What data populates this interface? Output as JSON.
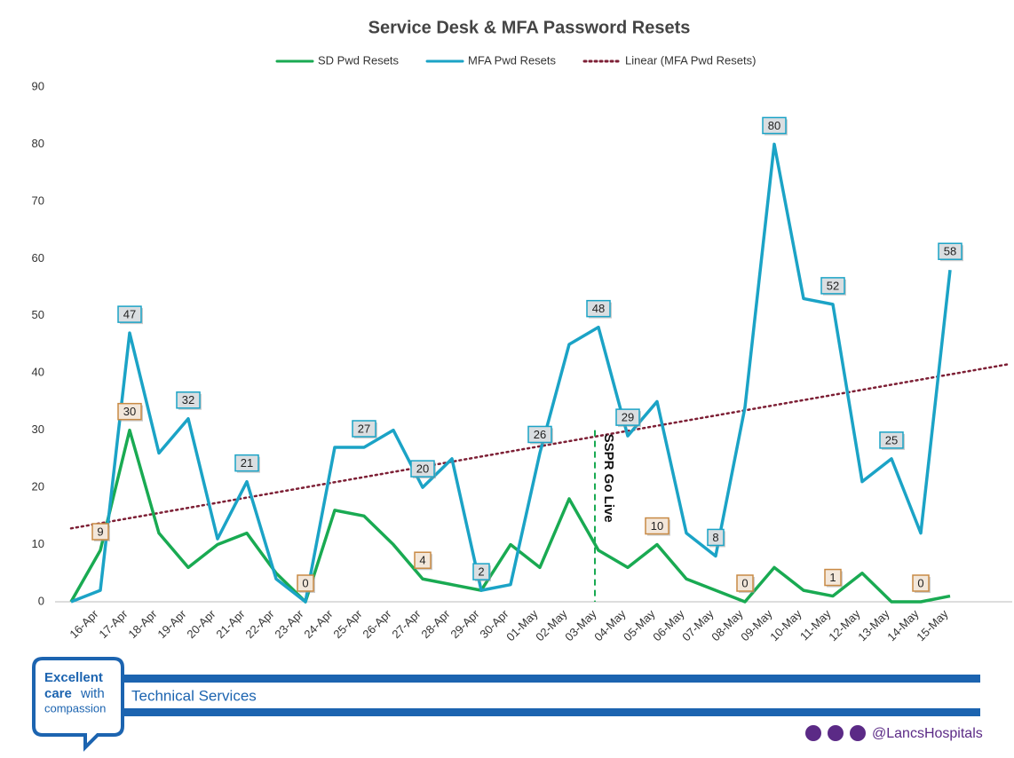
{
  "chart_data": {
    "type": "line",
    "title": "Service Desk  & MFA Password Resets",
    "categories": [
      null,
      "16-Apr",
      "17-Apr",
      "18-Apr",
      "19-Apr",
      "20-Apr",
      "21-Apr",
      "22-Apr",
      "23-Apr",
      "24-Apr",
      "25-Apr",
      "26-Apr",
      "27-Apr",
      "28-Apr",
      "29-Apr",
      "30-Apr",
      "01-May",
      "02-May",
      "03-May",
      "04-May",
      "05-May",
      "06-May",
      "07-May",
      "08-May",
      "09-May",
      "10-May",
      "11-May",
      "12-May",
      "13-May",
      "14-May",
      "15-May"
    ],
    "series": [
      {
        "name": "SD Pwd Resets",
        "color": "#19aa52",
        "label_fill": "#f3e7da",
        "label_stroke": "#c88a45",
        "values": [
          0,
          9,
          30,
          12,
          6,
          10,
          12,
          5,
          0,
          16,
          15,
          10,
          4,
          3,
          2,
          10,
          6,
          18,
          9,
          6,
          10,
          4,
          2,
          0,
          6,
          2,
          1,
          5,
          0,
          0,
          1
        ],
        "value_labels": [
          null,
          "9",
          "30",
          null,
          null,
          null,
          null,
          null,
          "0",
          null,
          null,
          null,
          "4",
          null,
          null,
          null,
          null,
          null,
          null,
          null,
          "10",
          null,
          null,
          "0",
          null,
          null,
          "1",
          null,
          null,
          "0",
          null
        ]
      },
      {
        "name": "MFA Pwd Resets",
        "color": "#1ba3c6",
        "label_fill": "#dadee1",
        "label_stroke": "#1ba3c6",
        "values": [
          0,
          2,
          47,
          26,
          32,
          11,
          21,
          4,
          0,
          27,
          27,
          30,
          20,
          25,
          2,
          3,
          26,
          45,
          48,
          29,
          35,
          12,
          8,
          34,
          80,
          53,
          52,
          21,
          25,
          12,
          58
        ],
        "value_labels": [
          null,
          null,
          "47",
          null,
          "32",
          null,
          "21",
          null,
          null,
          null,
          "27",
          null,
          "20",
          null,
          "2",
          null,
          "26",
          null,
          "48",
          "29",
          null,
          null,
          "8",
          null,
          "80",
          null,
          "52",
          null,
          "25",
          null,
          "58"
        ]
      }
    ],
    "trendline": {
      "name": "Linear (MFA Pwd Resets)",
      "color": "#7d1f35",
      "series": 1
    },
    "annotation": {
      "text": "SSPR Go Live",
      "category": "03-May",
      "y": 30,
      "color": "#19aa52"
    },
    "ylim": [
      0,
      90
    ],
    "yticks": [
      0,
      10,
      20,
      30,
      40,
      50,
      60,
      70,
      80,
      90
    ],
    "grid": false,
    "legend": "top"
  },
  "footer": {
    "logo": [
      "Excellent",
      "care",
      "with",
      "compassion"
    ],
    "department": "Technical Services",
    "handle": "@LancsHospitals"
  }
}
